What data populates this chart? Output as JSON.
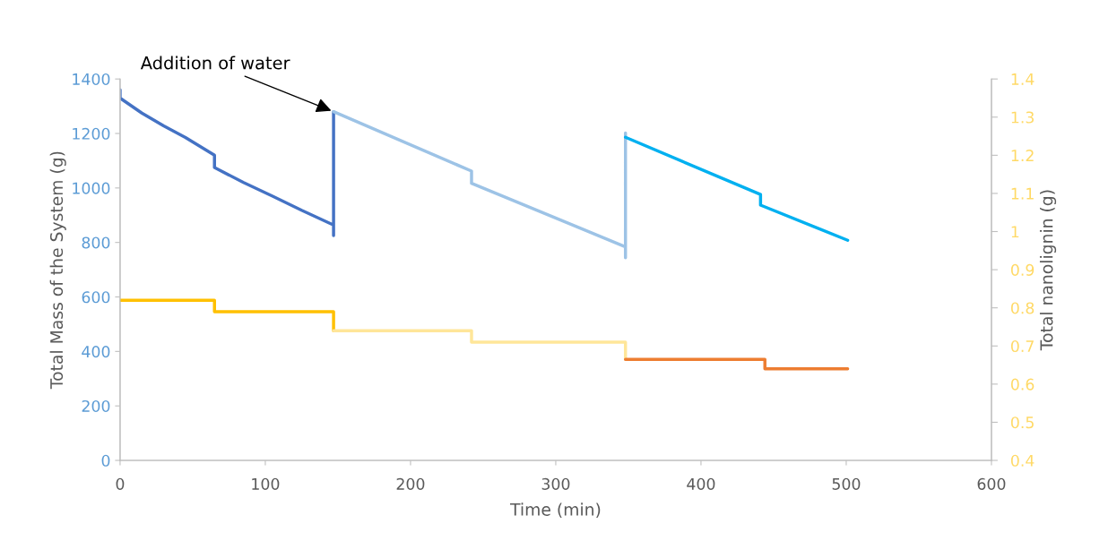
{
  "chart_data": {
    "type": "line",
    "xlabel": "Time (min)",
    "ylabel": "Total Mass of the System (g)",
    "y2label": "Total nanolignin (g)",
    "xlim": [
      0,
      600
    ],
    "xticks": [
      0,
      100,
      200,
      300,
      400,
      500,
      600
    ],
    "ylim": [
      0,
      1400
    ],
    "yticks": [
      0,
      200,
      400,
      600,
      800,
      1000,
      1200,
      1400
    ],
    "y2lim": [
      0.4,
      1.4
    ],
    "y2ticks": [
      {
        "value": 0.4,
        "label": "0.4"
      },
      {
        "value": 0.5,
        "label": "0.5"
      },
      {
        "value": 0.6,
        "label": "0.6"
      },
      {
        "value": 0.7,
        "label": "0.7"
      },
      {
        "value": 0.8,
        "label": "0.8"
      },
      {
        "value": 0.9,
        "label": "0.9"
      },
      {
        "value": 1.0,
        "label": "1"
      },
      {
        "value": 1.1,
        "label": "1.1"
      },
      {
        "value": 1.2,
        "label": "1.2"
      },
      {
        "value": 1.3,
        "label": "1.3"
      },
      {
        "value": 1.4,
        "label": "1.4"
      }
    ],
    "grid": false,
    "marker": "none",
    "line_style": "solid",
    "annotations": [
      {
        "text": "Addition of water",
        "x": 147,
        "y": 1280
      }
    ],
    "series": [
      {
        "color": "#4472c4",
        "x": [
          0,
          0,
          15,
          30,
          45,
          65,
          65,
          85,
          105,
          125,
          147,
          147,
          147
        ],
        "values": [
          1360,
          1330,
          1275,
          1228,
          1185,
          1120,
          1075,
          1020,
          970,
          918,
          864,
          825,
          1280
        ]
      },
      {
        "color": "#9dc3e6",
        "x": [
          147,
          242,
          242,
          348,
          348,
          348
        ],
        "values": [
          1280,
          1062,
          1017,
          784,
          744,
          1202
        ]
      },
      {
        "color": "#00b0f0",
        "x": [
          348,
          441,
          441,
          501
        ],
        "values": [
          1186,
          976,
          937,
          808
        ]
      },
      {
        "color": "#ffc000",
        "axis": "y2",
        "x": [
          0,
          65,
          65,
          147,
          147
        ],
        "values": [
          0.82,
          0.82,
          0.79,
          0.79,
          0.74
        ]
      },
      {
        "color": "#ffe699",
        "axis": "y2",
        "x": [
          147,
          242,
          242,
          348,
          348
        ],
        "values": [
          0.74,
          0.74,
          0.71,
          0.71,
          0.665
        ]
      },
      {
        "color": "#ed7d31",
        "axis": "y2",
        "x": [
          348,
          444,
          444,
          501
        ],
        "values": [
          0.665,
          0.665,
          0.64,
          0.64
        ]
      }
    ]
  }
}
